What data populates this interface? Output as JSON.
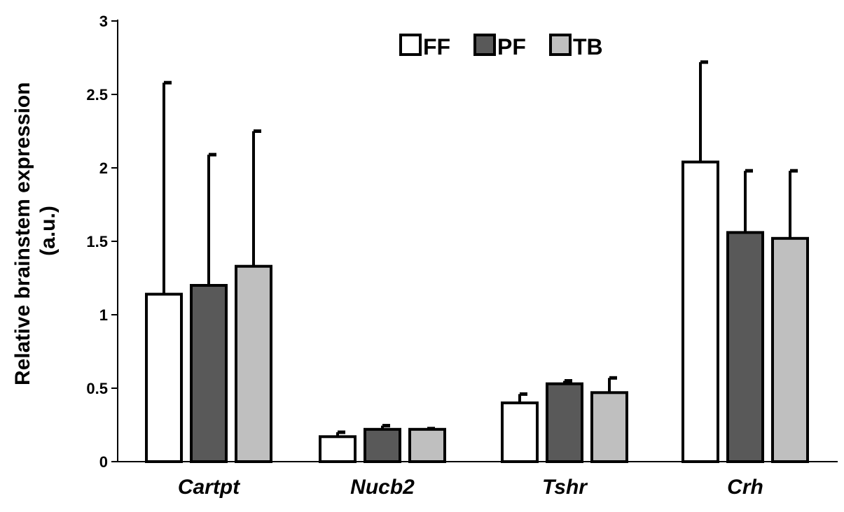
{
  "chart_data": {
    "type": "bar",
    "ylabel_line1": "Relative brainstem expression",
    "ylabel_line2": "(a.u.)",
    "ylim": [
      0,
      3
    ],
    "yticks": [
      0,
      0.5,
      1,
      1.5,
      2,
      2.5,
      3
    ],
    "ytick_labels": [
      "0",
      "0.5",
      "1",
      "1.5",
      "2",
      "2.5",
      "3"
    ],
    "categories": [
      "Cartpt",
      "Nucb2",
      "Tshr",
      "Crh"
    ],
    "legend_position": "top-center",
    "grid": false,
    "series": [
      {
        "name": "FF",
        "color": "#ffffff",
        "values": [
          1.14,
          0.17,
          0.4,
          2.04
        ],
        "errors": [
          1.44,
          0.03,
          0.06,
          0.68
        ]
      },
      {
        "name": "PF",
        "color": "#595959",
        "values": [
          1.2,
          0.22,
          0.53,
          1.56
        ],
        "errors": [
          0.89,
          0.025,
          0.02,
          0.42
        ]
      },
      {
        "name": "TB",
        "color": "#bfbfbf",
        "values": [
          1.33,
          0.22,
          0.47,
          1.52
        ],
        "errors": [
          0.92,
          0.005,
          0.1,
          0.46
        ]
      }
    ]
  }
}
